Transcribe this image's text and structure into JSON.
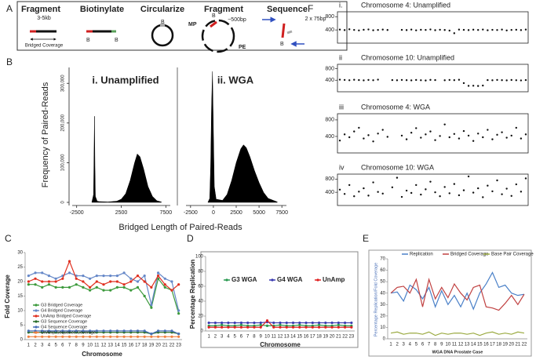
{
  "panel_labels": [
    "A",
    "B",
    "C",
    "D",
    "E",
    "F"
  ],
  "diagram": {
    "steps": [
      {
        "title": "Fragment",
        "note": "3-5kb"
      },
      {
        "title": "Biotinylate"
      },
      {
        "title": "Circularize"
      },
      {
        "title": "Fragment",
        "note": "~500bp"
      },
      {
        "title": "Sequence",
        "note": "2 x 75bp"
      }
    ],
    "bridged": "Bridged Coverage",
    "biotin": "B",
    "mp": "MP",
    "pe": "PE"
  },
  "chart_data": [
    {
      "type": "area",
      "title": "i. Unamplified",
      "x_label": "Bridged Length of Paired-Reads",
      "y_label": "Frequency of Paired-Reads",
      "color": "#000000",
      "x": [
        -800,
        -600,
        -550,
        -500,
        -450,
        -400,
        -200,
        0,
        1000,
        2000,
        2500,
        3000,
        3500,
        4000,
        4300,
        4600,
        5000,
        5500,
        6000,
        6500,
        7000
      ],
      "values": [
        0,
        20000,
        120000,
        217000,
        90000,
        15000,
        3000,
        2000,
        1000,
        3000,
        8000,
        22000,
        55000,
        100000,
        122000,
        115000,
        85000,
        40000,
        15000,
        4000,
        1000
      ],
      "xlim": [
        -3000,
        8000
      ],
      "xticks": [
        -2500,
        2500,
        7500
      ],
      "ylim": [
        0,
        340000
      ],
      "yticks": [
        0,
        {
          "value": 100000,
          "label": "100,000"
        },
        {
          "value": 200000,
          "label": "200,000"
        },
        {
          "value": 300000,
          "label": "300,000"
        }
      ]
    },
    {
      "type": "area",
      "title": "ii. WGA",
      "color": "#000000",
      "x": [
        -600,
        -400,
        -300,
        -200,
        -100,
        0,
        100,
        300,
        1000,
        1500,
        2000,
        2500,
        3000,
        3300,
        3600,
        4000,
        4500,
        5000,
        5500,
        6000,
        7000
      ],
      "values": [
        0,
        10000,
        90000,
        240000,
        330000,
        180000,
        40000,
        8000,
        5000,
        20000,
        55000,
        100000,
        135000,
        145000,
        138000,
        115000,
        80000,
        50000,
        25000,
        10000,
        1000
      ],
      "xlim": [
        -3000,
        8000
      ],
      "xticks": [
        -2500,
        0,
        2500,
        5000,
        7500
      ],
      "ylim": [
        0,
        340000
      ],
      "yticks": []
    },
    {
      "type": "line",
      "x_label": "Chromosome",
      "y_label": "Fold Coverage",
      "legend": "lower left",
      "markers": true,
      "categories": [
        1,
        2,
        3,
        4,
        5,
        6,
        7,
        8,
        9,
        10,
        11,
        12,
        13,
        14,
        15,
        16,
        17,
        18,
        19,
        20,
        21,
        22,
        23
      ],
      "ylim": [
        0,
        30
      ],
      "yticks": [
        0,
        5,
        10,
        15,
        20,
        25,
        30
      ],
      "series": [
        {
          "name": "G3 Bridged Coverage",
          "color": "#3c9a3c",
          "values": [
            19,
            19,
            18,
            19,
            18,
            18,
            18,
            19,
            18,
            17,
            18,
            17,
            17,
            18,
            18,
            17,
            18,
            15,
            11,
            21,
            18,
            17,
            9
          ]
        },
        {
          "name": "G4 Bridged Coverage",
          "color": "#6688c8",
          "values": [
            22,
            23,
            23,
            22,
            21,
            22,
            23,
            22,
            22,
            21,
            22,
            22,
            22,
            22,
            23,
            21,
            20,
            22,
            12,
            23,
            21,
            20,
            10
          ]
        },
        {
          "name": "UnAmp Bridged Coverage",
          "color": "#e03020",
          "values": [
            20,
            21,
            20,
            20,
            20,
            21,
            27,
            21,
            20,
            18,
            20,
            19,
            20,
            20,
            19,
            20,
            22,
            20,
            18,
            22,
            19,
            17,
            19
          ]
        },
        {
          "name": "G3 Sequence Coverage",
          "color": "#2a6e2a",
          "values": [
            2.5,
            2.5,
            2.5,
            2.5,
            2.5,
            2.5,
            2.5,
            2.5,
            2.5,
            2.5,
            2.5,
            2.5,
            2.5,
            2.5,
            2.5,
            2.5,
            2.5,
            2.5,
            2,
            2.5,
            2.5,
            2.5,
            2
          ]
        },
        {
          "name": "G4 Sequence Coverage",
          "color": "#4a70b8",
          "values": [
            3,
            3,
            3,
            3,
            3,
            3,
            3,
            3,
            3,
            3,
            3,
            3,
            3,
            3,
            3,
            3,
            3,
            3,
            2,
            3,
            3,
            3,
            2
          ]
        },
        {
          "name": "UnAmp Sequence Coverage",
          "color": "#f08040",
          "values": [
            1,
            1,
            1,
            1,
            1,
            1,
            1,
            1,
            1,
            1,
            1,
            1,
            1,
            1,
            1,
            1,
            1,
            1,
            1,
            1,
            1,
            1,
            1
          ]
        }
      ]
    },
    {
      "type": "line",
      "x_label": "Chromosome",
      "y_label": "Percentage Replication",
      "legend": "upper center",
      "markers": true,
      "categories": [
        1,
        2,
        3,
        4,
        5,
        6,
        7,
        8,
        9,
        10,
        11,
        12,
        13,
        14,
        15,
        16,
        17,
        18,
        19,
        20,
        21,
        22,
        23
      ],
      "ylim": [
        0,
        100
      ],
      "yticks": [
        0,
        20,
        40,
        60,
        80,
        100
      ],
      "series": [
        {
          "name": "G3 WGA",
          "color": "#2a9a50",
          "values": [
            7,
            7,
            8,
            7,
            7,
            8,
            7,
            7,
            8,
            7,
            7,
            8,
            7,
            7,
            8,
            7,
            7,
            8,
            7,
            7,
            8,
            7,
            7
          ]
        },
        {
          "name": "G4 WGA",
          "color": "#3a3ab0",
          "values": [
            11,
            11,
            11,
            11,
            11,
            11,
            11,
            11,
            11,
            12,
            11,
            11,
            11,
            11,
            11,
            11,
            11,
            11,
            11,
            11,
            11,
            11,
            11
          ]
        },
        {
          "name": "UnAmp",
          "color": "#e02020",
          "values": [
            5,
            5,
            5,
            5,
            5,
            5,
            5,
            5,
            5,
            14,
            5,
            5,
            5,
            5,
            5,
            5,
            5,
            5,
            5,
            5,
            5,
            5,
            5
          ]
        }
      ]
    },
    {
      "type": "line",
      "x_label": "WGA DNA Prostate Case",
      "y_label": "Percentage Replication/Fold Coverage",
      "legend": "top",
      "markers": false,
      "categories": [
        1,
        2,
        3,
        4,
        5,
        6,
        7,
        8,
        9,
        10,
        11,
        12,
        13,
        14,
        15,
        16,
        17,
        18,
        19,
        20,
        21,
        22
      ],
      "ylim": [
        0,
        70
      ],
      "yticks": [
        0,
        10,
        20,
        30,
        40,
        50,
        60,
        70
      ],
      "series": [
        {
          "name": "Replication",
          "color": "#4a80c8",
          "values": [
            40,
            41,
            33,
            47,
            43,
            35,
            45,
            28,
            42,
            30,
            38,
            28,
            40,
            26,
            40,
            48,
            58,
            45,
            47,
            40,
            38,
            39
          ]
        },
        {
          "name": "Bridged Coverage",
          "color": "#c04040",
          "values": [
            40,
            45,
            46,
            40,
            52,
            28,
            52,
            35,
            45,
            36,
            48,
            40,
            34,
            45,
            47,
            28,
            27,
            25,
            31,
            38,
            30,
            39
          ]
        },
        {
          "name": "Base Pair Coverage",
          "color": "#9aaa40",
          "values": [
            5,
            6,
            4,
            5,
            5,
            4,
            6,
            3,
            5,
            4,
            5,
            5,
            4,
            5,
            3,
            5,
            6,
            4,
            5,
            4,
            6,
            5
          ]
        }
      ]
    },
    {
      "type": "scatter",
      "numeral": "i.",
      "title": "Chromosome 4:  Unamplified",
      "color": "#111111",
      "ylim": [
        0,
        950
      ],
      "yticks": [
        400,
        800
      ],
      "values": [
        410,
        395,
        420,
        400,
        385,
        405,
        415,
        390,
        400,
        410,
        398,
        null,
        null,
        402,
        395,
        410,
        388,
        405,
        400,
        415,
        392,
        406,
        398,
        380,
        300,
        410,
        402,
        395,
        408,
        399,
        412,
        390,
        403,
        397,
        410,
        385,
        400,
        405,
        395,
        410
      ]
    },
    {
      "type": "scatter",
      "numeral": "ii",
      "title": "Chromosome 10:  Unamplified",
      "color": "#111111",
      "ylim": [
        0,
        950
      ],
      "yticks": [
        400,
        800
      ],
      "values": [
        420,
        410,
        400,
        415,
        405,
        395,
        410,
        400,
        420,
        null,
        null,
        405,
        398,
        410,
        402,
        395,
        408,
        400,
        390,
        412,
        405,
        null,
        398,
        410,
        402,
        415,
        300,
        205,
        210,
        200,
        215,
        405,
        398,
        410,
        402,
        395,
        408,
        400,
        392,
        405
      ]
    },
    {
      "type": "scatter",
      "numeral": "iii",
      "title": "Chromosome 4:  WGA",
      "color": "#111111",
      "ylim": [
        0,
        950
      ],
      "yticks": [
        400,
        800
      ],
      "values": [
        300,
        450,
        380,
        520,
        610,
        350,
        430,
        280,
        470,
        560,
        390,
        null,
        null,
        420,
        330,
        490,
        600,
        370,
        450,
        520,
        310,
        410,
        690,
        380,
        460,
        350,
        530,
        420,
        290,
        470,
        380,
        560,
        330,
        440,
        500,
        370,
        420,
        610,
        350,
        450
      ]
    },
    {
      "type": "scatter",
      "numeral": "iv",
      "title": "Chromosome 10:  WGA",
      "color": "#111111",
      "ylim": [
        0,
        950
      ],
      "yticks": [
        400,
        800
      ],
      "values": [
        480,
        350,
        620,
        280,
        420,
        520,
        300,
        700,
        410,
        360,
        null,
        550,
        840,
        260,
        450,
        380,
        620,
        330,
        490,
        720,
        400,
        280,
        560,
        370,
        650,
        310,
        460,
        880,
        390,
        520,
        250,
        600,
        430,
        760,
        340,
        510,
        290,
        640,
        420,
        820
      ]
    }
  ]
}
